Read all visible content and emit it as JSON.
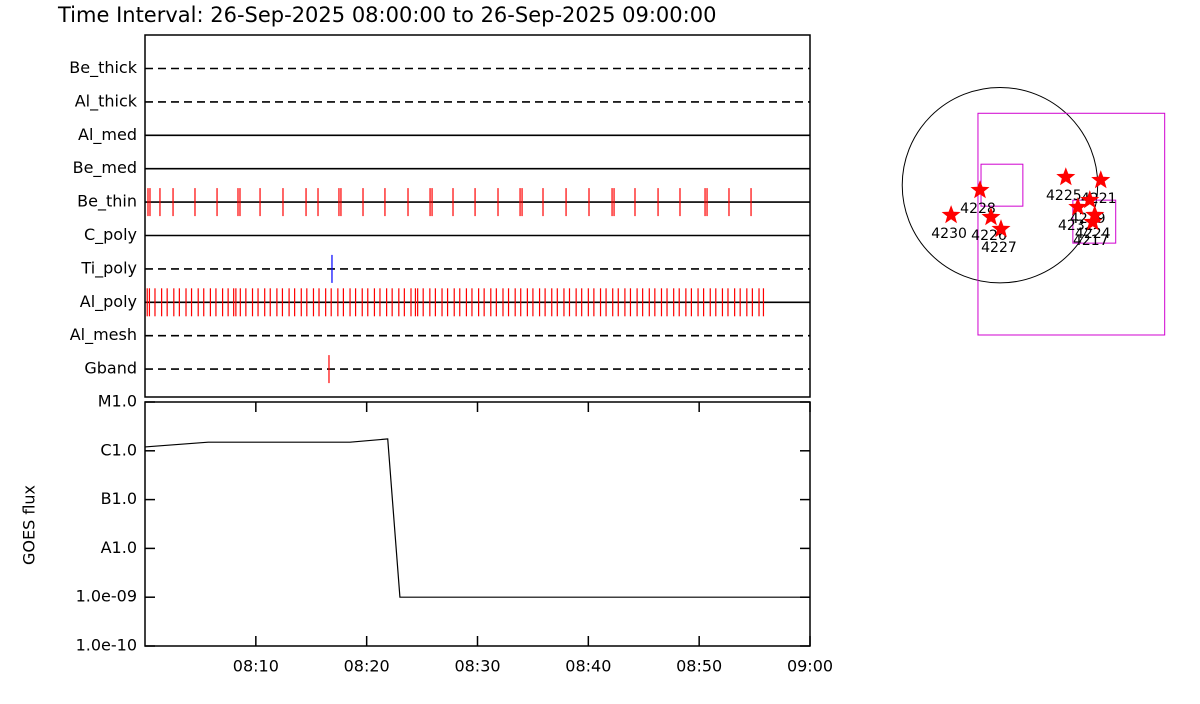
{
  "chart_data": [
    {
      "type": "timeline",
      "title": "Time Interval: 26-Sep-2025 08:00:00 to 26-Sep-2025 09:00:00",
      "xlim": [
        0,
        60
      ],
      "rows": [
        {
          "label": "Be_thick",
          "line_style": "dashed",
          "color": "#ff0000",
          "events": []
        },
        {
          "label": "Al_thick",
          "line_style": "dashed",
          "color": "#ff0000",
          "events": []
        },
        {
          "label": "Al_med",
          "line_style": "solid",
          "color": "#ff0000",
          "events": []
        },
        {
          "label": "Be_med",
          "line_style": "solid",
          "color": "#ff0000",
          "events": []
        },
        {
          "label": "Be_thin",
          "line_style": "solid",
          "color": "#ff0000",
          "events": [
            0.27,
            0.45,
            1.35,
            2.53,
            4.51,
            6.5,
            8.39,
            8.57,
            10.38,
            12.45,
            14.53,
            15.61,
            17.5,
            17.68,
            19.67,
            21.65,
            23.73,
            25.72,
            25.9,
            27.79,
            29.78,
            31.85,
            33.84,
            34.02,
            35.91,
            37.99,
            40.06,
            42.14,
            42.32,
            44.21,
            46.29,
            48.27,
            50.53,
            50.71,
            52.69,
            54.68
          ]
        },
        {
          "label": "C_poly",
          "line_style": "solid",
          "color": "#ff0000",
          "events": []
        },
        {
          "label": "Ti_poly",
          "line_style": "dashed",
          "color": "#0000ff",
          "events": [
            16.87
          ]
        },
        {
          "label": "Al_poly",
          "line_style": "solid",
          "color": "#ff0000",
          "events": [
            0.2,
            0.4,
            0.9,
            1.5,
            2.0,
            2.6,
            3.1,
            3.7,
            4.2,
            4.8,
            5.3,
            5.9,
            6.4,
            7.0,
            7.5,
            8.0,
            8.2,
            8.6,
            9.1,
            9.7,
            10.2,
            10.8,
            11.3,
            11.9,
            12.4,
            13.0,
            13.5,
            14.1,
            14.6,
            15.2,
            15.7,
            16.3,
            16.8,
            17.4,
            17.9,
            18.5,
            19.0,
            19.6,
            20.1,
            20.7,
            21.2,
            21.8,
            22.3,
            22.9,
            23.4,
            24.0,
            24.4,
            24.6,
            25.1,
            25.7,
            26.2,
            26.8,
            27.3,
            27.9,
            28.4,
            29.0,
            29.5,
            30.1,
            30.6,
            31.2,
            31.7,
            32.3,
            32.8,
            33.4,
            33.9,
            34.5,
            35.0,
            35.6,
            36.1,
            36.7,
            37.2,
            37.8,
            38.3,
            38.9,
            39.4,
            40.0,
            40.5,
            41.1,
            41.6,
            42.2,
            42.7,
            43.3,
            43.8,
            44.4,
            44.9,
            45.5,
            46.0,
            46.6,
            47.1,
            47.7,
            48.2,
            48.8,
            49.3,
            49.9,
            50.4,
            51.0,
            51.5,
            52.1,
            52.6,
            53.2,
            53.7,
            54.3,
            54.8,
            55.4,
            55.8
          ]
        },
        {
          "label": "Al_mesh",
          "line_style": "dashed",
          "color": "#ff0000",
          "events": []
        },
        {
          "label": "Gband",
          "line_style": "dashed",
          "color": "#ff0000",
          "events": [
            16.6
          ]
        }
      ]
    },
    {
      "type": "line",
      "y_label": "GOES flux",
      "log_y": true,
      "color": "#000000",
      "x": [
        0,
        5.7,
        18.5,
        21.9,
        23.0,
        60
      ],
      "values": [
        1.2e-06,
        1.5e-06,
        1.5e-06,
        1.75e-06,
        1e-09,
        1e-09
      ],
      "xlim": [
        0,
        60
      ],
      "xticks": [
        {
          "value": 10,
          "label": "08:10"
        },
        {
          "value": 20,
          "label": "08:20"
        },
        {
          "value": 30,
          "label": "08:30"
        },
        {
          "value": 40,
          "label": "08:40"
        },
        {
          "value": 50,
          "label": "08:50"
        },
        {
          "value": 60,
          "label": "09:00"
        }
      ],
      "ylim": [
        1e-10,
        1e-05
      ],
      "yticks": [
        {
          "value": 1e-05,
          "label": "M1.0"
        },
        {
          "value": 1e-06,
          "label": "C1.0"
        },
        {
          "value": 1e-07,
          "label": "B1.0"
        },
        {
          "value": 1e-08,
          "label": "A1.0"
        },
        {
          "value": 1e-09,
          "label": "1.0e-09"
        },
        {
          "value": 1e-10,
          "label": "1.0e-10"
        }
      ]
    },
    {
      "type": "map",
      "xlim": [
        -1080,
        1680
      ],
      "ylim": [
        -1530,
        1180
      ],
      "radius": 960,
      "fov_color": "#d000d0",
      "fovs": [
        [
          -216,
          706,
          1618,
          -1471
        ],
        [
          -186,
          206,
          225,
          -206
        ],
        [
          716,
          -147,
          1137,
          -569
        ]
      ],
      "point_color": "#ff0000",
      "points": [
        {
          "name": "4230",
          "x": -480,
          "y": -294
        },
        {
          "name": "4228",
          "x": -196,
          "y": -49
        },
        {
          "name": "4226",
          "x": -88,
          "y": -314
        },
        {
          "name": "4227",
          "x": 10,
          "y": -431
        },
        {
          "name": "4225",
          "x": 647,
          "y": 78
        },
        {
          "name": "4221",
          "x": 990,
          "y": 49
        },
        {
          "name": "4219",
          "x": 882,
          "y": -147
        },
        {
          "name": "4232",
          "x": 765,
          "y": -216
        },
        {
          "name": "4224",
          "x": 931,
          "y": -294
        },
        {
          "name": "4217",
          "x": 912,
          "y": -363
        }
      ]
    }
  ]
}
